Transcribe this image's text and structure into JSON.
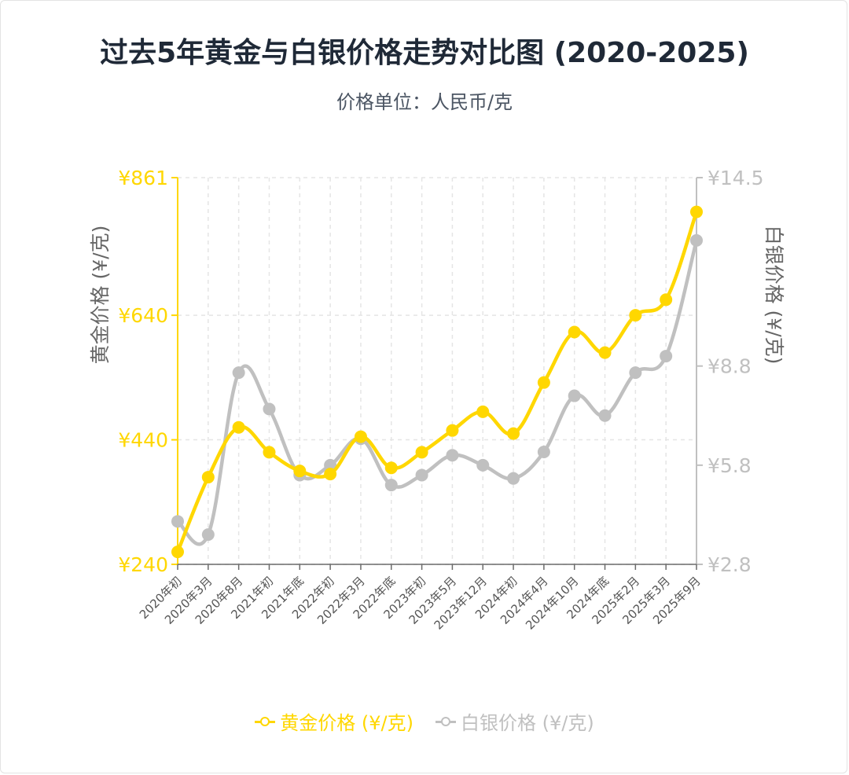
{
  "title": "过去5年黄金与白银价格走势对比图 (2020-2025)",
  "subtitle": "价格单位：人民币/克",
  "colors": {
    "gold": "#FFD700",
    "silver": "#C0C0C0",
    "grid": "#e5e5e5",
    "text": "#1f2937"
  },
  "chart_data": {
    "type": "line",
    "categories": [
      "2020年初",
      "2020年3月",
      "2020年8月",
      "2021年初",
      "2021年底",
      "2022年初",
      "2022年3月",
      "2022年底",
      "2023年初",
      "2023年5月",
      "2023年12月",
      "2024年初",
      "2024年4月",
      "2024年10月",
      "2024年底",
      "2025年2月",
      "2025年3月",
      "2025年9月"
    ],
    "series": [
      {
        "name": "黄金价格 (¥/克)",
        "axis": "left",
        "color": "#FFD700",
        "values": [
          260,
          380,
          460,
          420,
          390,
          385,
          445,
          395,
          420,
          455,
          485,
          450,
          532,
          613,
          580,
          640,
          665,
          806
        ]
      },
      {
        "name": "白银价格 (¥/克)",
        "axis": "right",
        "color": "#C0C0C0",
        "values": [
          4.1,
          3.7,
          8.6,
          7.5,
          5.5,
          5.8,
          6.6,
          5.2,
          5.5,
          6.1,
          5.8,
          5.4,
          6.2,
          7.9,
          7.3,
          8.6,
          9.1,
          12.6
        ]
      }
    ],
    "y_left": {
      "label": "黄金价格 (¥/克)",
      "range": [
        240,
        861
      ],
      "ticks": [
        "¥240",
        "¥440",
        "¥640",
        "¥861"
      ],
      "tick_values": [
        240,
        440,
        640,
        861
      ]
    },
    "y_right": {
      "label": "白银价格 (¥/克)",
      "range": [
        2.8,
        14.5
      ],
      "ticks": [
        "¥2.8",
        "¥5.8",
        "¥8.8",
        "¥14.5"
      ],
      "tick_values": [
        2.8,
        5.8,
        8.8,
        14.5
      ]
    },
    "grid": true,
    "legend_position": "bottom"
  }
}
